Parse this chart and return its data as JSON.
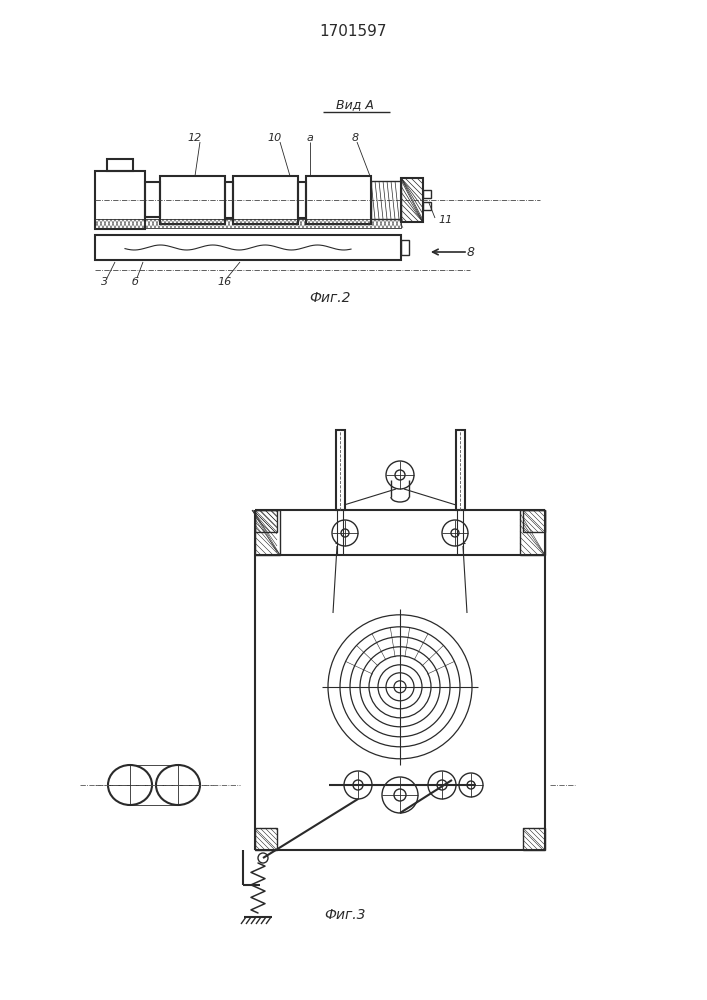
{
  "title": "1701597",
  "fig2_label": "Фиг.2",
  "fig3_label": "Фиг.3",
  "vid_a_label": "Вид А",
  "bg_color": "#ffffff",
  "line_color": "#2a2a2a"
}
